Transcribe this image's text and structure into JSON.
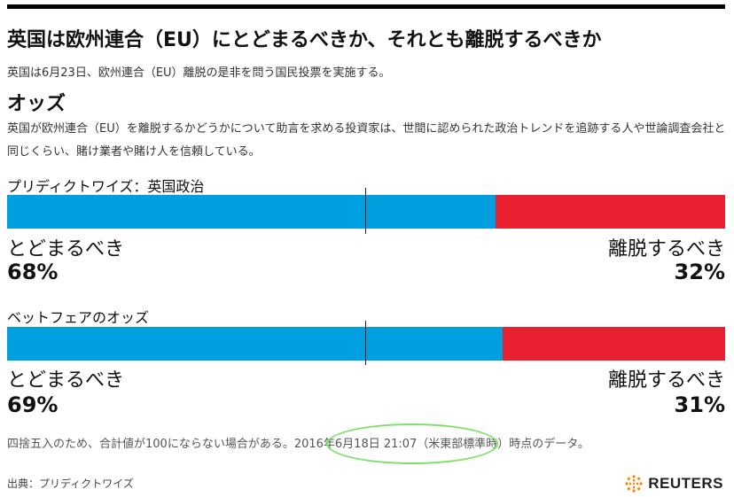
{
  "header": {
    "title": "英国は欧州連合（EU）にとどまるべきか、それとも離脱するべきか",
    "subtitle": "英国は6月23日、欧州連合（EU）離脱の是非を問う国民投票を実施する。",
    "section_title": "オッズ",
    "description": "英国が欧州連合（EU）を離脱するかどうかについて助言を求める投資家は、世間に認められた政治トレンドを追跡する人や世論調査会社と同じくらい、賭け業者や賭け人を信頼している。"
  },
  "colors": {
    "remain": "#009fe0",
    "leave": "#e8202f"
  },
  "chart_data": [
    {
      "type": "bar",
      "title": "プリディクトワイズ：英国政治",
      "categories": [
        "とどまるべき",
        "離脱するべき"
      ],
      "values": [
        68,
        32
      ],
      "value_labels": [
        "68%",
        "32%"
      ],
      "stacked": true,
      "orientation": "horizontal"
    },
    {
      "type": "bar",
      "title": "ベットフェアのオッズ",
      "categories": [
        "とどまるべき",
        "離脱するべき"
      ],
      "values": [
        69,
        31
      ],
      "value_labels": [
        "69%",
        "31%"
      ],
      "stacked": true,
      "orientation": "horizontal"
    }
  ],
  "footer": {
    "note": "四捨五入のため、合計値が100にならない場合がある。2016年6月18日 21:07（米東部標準時）時点のデータ。",
    "source": "出典：プリディクトワイズ",
    "logo_text": "REUTERS",
    "logo_icon": "reuters-dot-icon"
  }
}
